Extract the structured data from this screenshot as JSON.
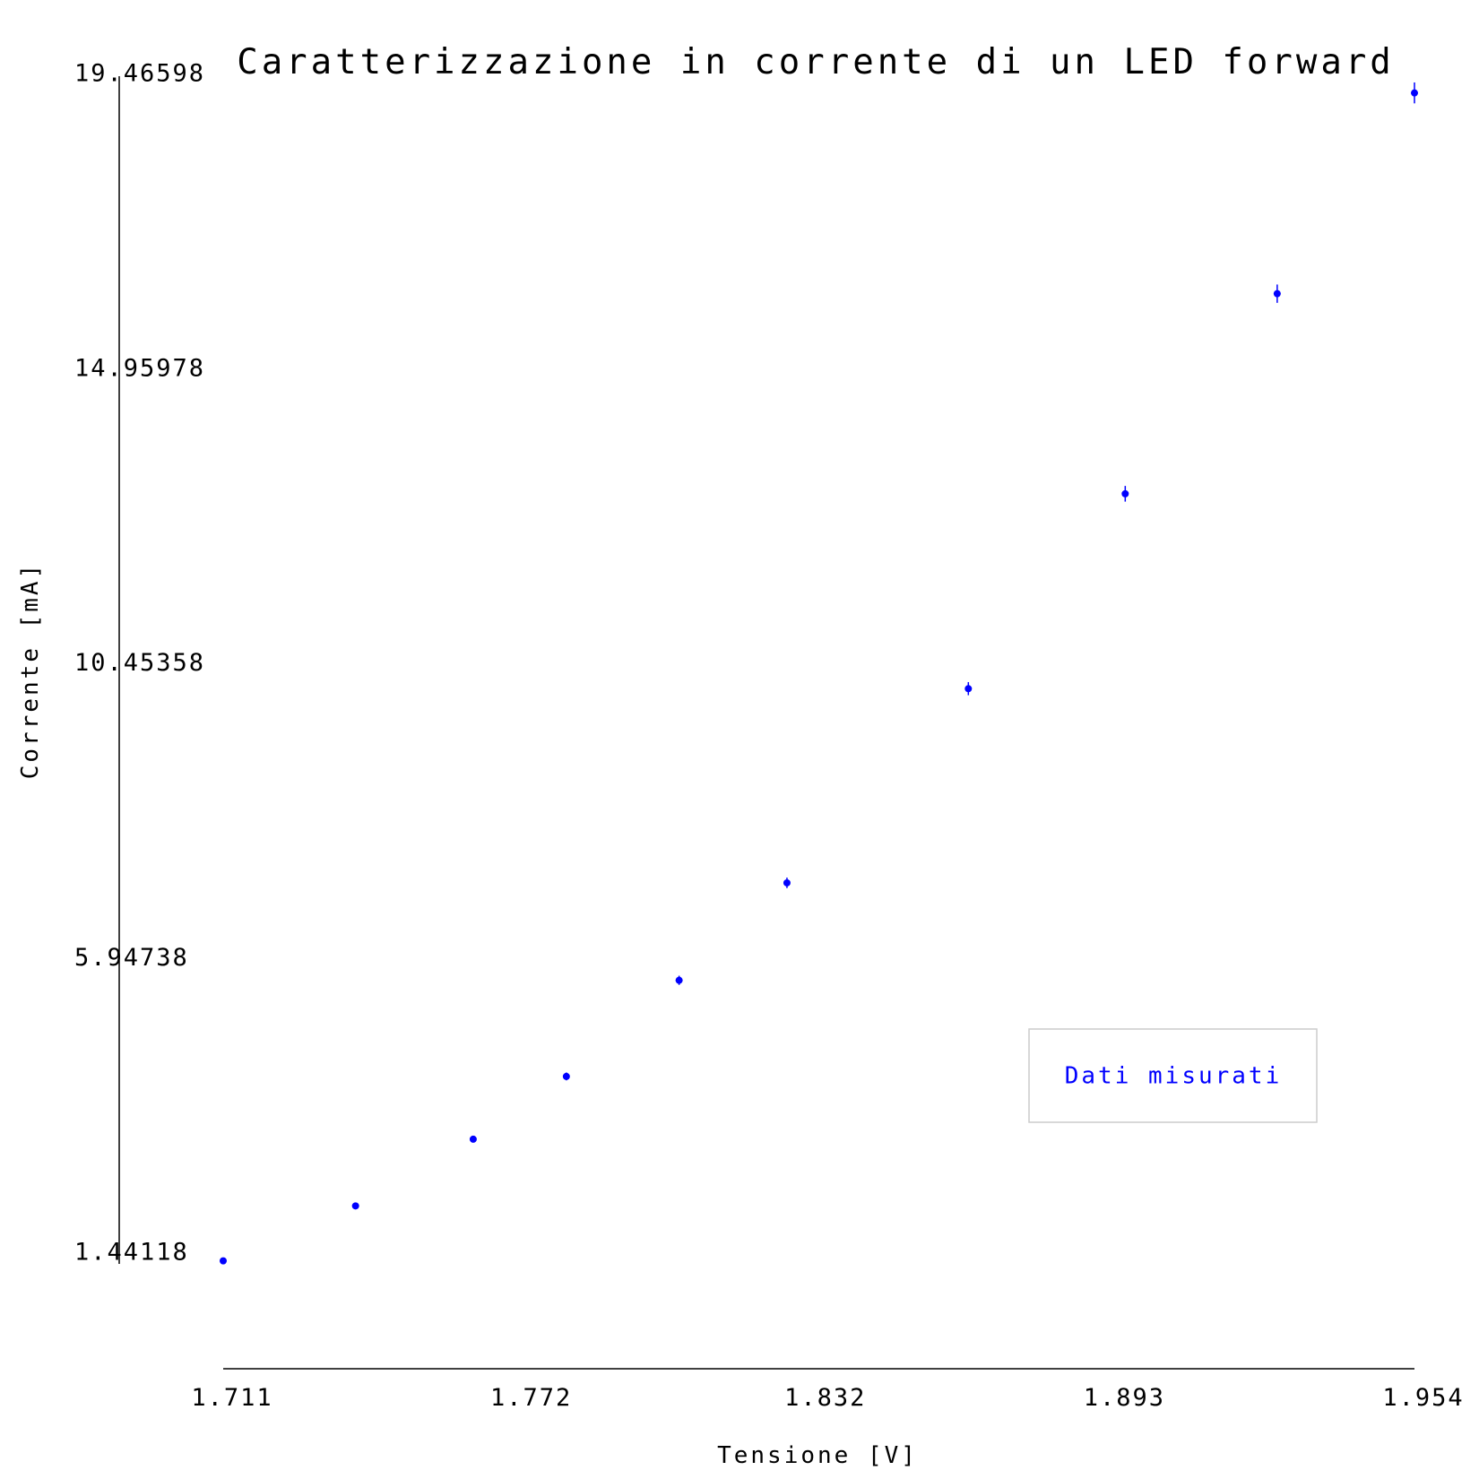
{
  "chart_data": {
    "type": "scatter",
    "title": "Caratterizzazione in corrente di un LED forward",
    "xlabel": "Tensione [V]",
    "ylabel": "Corrente [mA]",
    "xlim": [
      1.711,
      1.954
    ],
    "ylim": [
      1.44118,
      19.46598
    ],
    "x_ticks": [
      "1.711",
      "1.772",
      "1.832",
      "1.893",
      "1.954"
    ],
    "y_ticks": [
      "1.44118",
      "5.94738",
      "10.45358",
      "14.95978",
      "19.46598"
    ],
    "grid": false,
    "legend": {
      "position": "bottom-right",
      "entries": [
        "Dati misurati"
      ]
    },
    "series": [
      {
        "name": "Dati misurati",
        "color": "#0000ff",
        "points": [
          {
            "x": 1.711,
            "y": 1.46,
            "err": 0.03
          },
          {
            "x": 1.738,
            "y": 2.3,
            "err": 0.04
          },
          {
            "x": 1.762,
            "y": 3.32,
            "err": 0.05
          },
          {
            "x": 1.781,
            "y": 4.28,
            "err": 0.06
          },
          {
            "x": 1.804,
            "y": 5.75,
            "err": 0.07
          },
          {
            "x": 1.826,
            "y": 7.24,
            "err": 0.08
          },
          {
            "x": 1.863,
            "y": 10.21,
            "err": 0.1
          },
          {
            "x": 1.895,
            "y": 13.19,
            "err": 0.12
          },
          {
            "x": 1.926,
            "y": 16.25,
            "err": 0.14
          },
          {
            "x": 1.954,
            "y": 19.32,
            "err": 0.16
          }
        ]
      }
    ]
  }
}
